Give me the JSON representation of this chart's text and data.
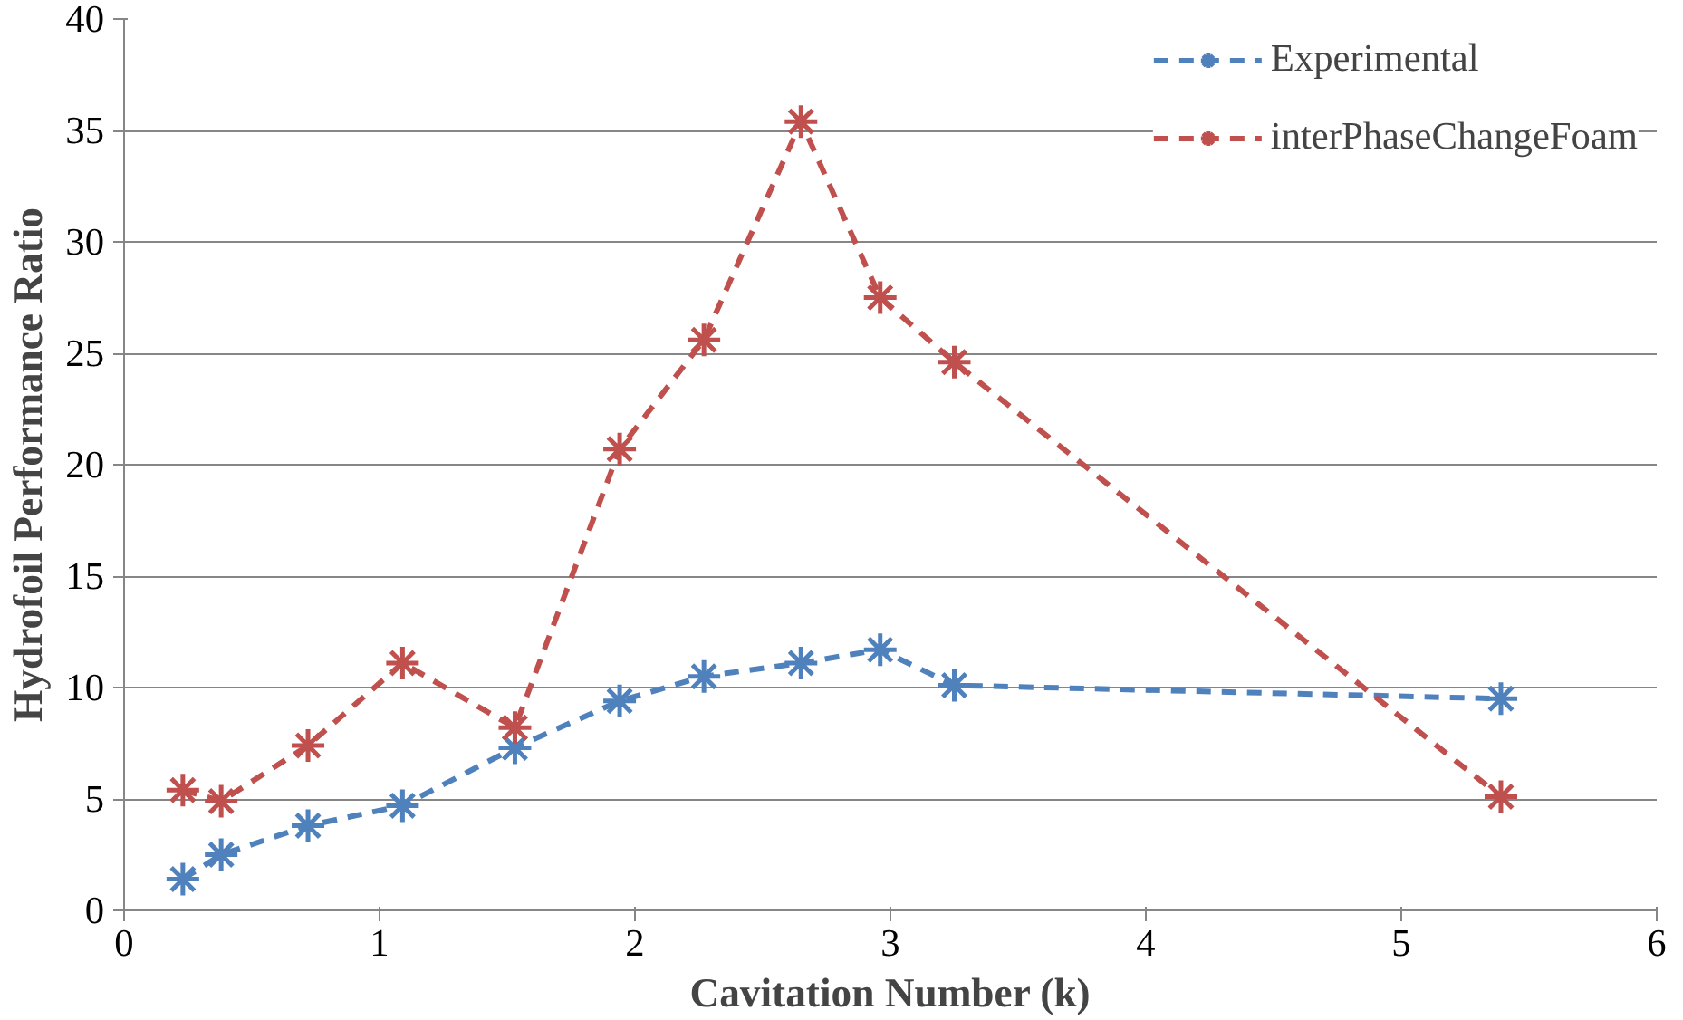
{
  "chart_data": {
    "type": "line",
    "xlabel": "Cavitation Number (k)",
    "ylabel": "Hydrofoil Performance Ratio",
    "x": [
      0.23,
      0.38,
      0.72,
      1.09,
      1.53,
      1.94,
      2.27,
      2.65,
      2.96,
      3.25,
      5.39
    ],
    "series": [
      {
        "name": "Experimental",
        "color": "#4f81bd",
        "values": [
          1.4,
          2.5,
          3.8,
          4.7,
          7.3,
          9.4,
          10.5,
          11.1,
          11.7,
          10.1,
          9.5
        ]
      },
      {
        "name": "interPhaseChangeFoam",
        "color": "#c0504d",
        "values": [
          5.4,
          4.9,
          7.4,
          11.1,
          8.2,
          20.7,
          25.6,
          35.4,
          27.5,
          24.6,
          5.1
        ]
      }
    ],
    "xlim": [
      0,
      6
    ],
    "xticks": [
      0,
      1,
      2,
      3,
      4,
      5,
      6
    ],
    "ylim": [
      0,
      40
    ],
    "yticks": [
      0,
      5,
      10,
      15,
      20,
      25,
      30,
      35,
      40
    ],
    "grid": "y",
    "legend": "top right",
    "marker": "cross",
    "line_style": "dashed"
  }
}
